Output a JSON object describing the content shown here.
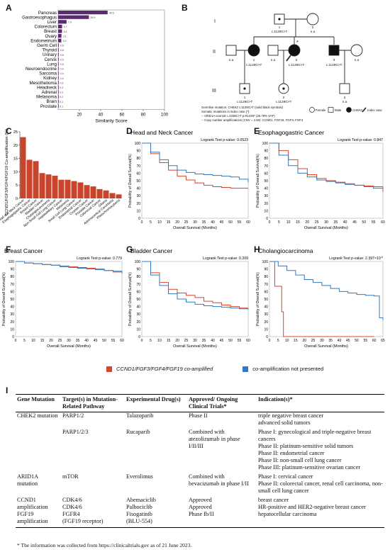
{
  "panel_letters": {
    "a": "A",
    "b": "B",
    "c": "C",
    "d": "D",
    "e": "E",
    "f": "F",
    "g": "G",
    "h": "H",
    "i": "I"
  },
  "colors": {
    "purple": "#5a2b6e",
    "red": "#d9442a",
    "blue": "#2f7bbf",
    "bar_c": "#c8452b"
  },
  "panel_a": {
    "chart_data": {
      "type": "bar",
      "categories": [
        "Pancreas",
        "Gastroesophagus",
        "Liver",
        "Colorectum",
        "Breast",
        "Ovary",
        "Endometrium",
        "Germ Cell",
        "Thyroid",
        "Urinary",
        "Cervix",
        "Lung",
        "Neuroendocrine",
        "Sarcoma",
        "Kidney",
        "Mesothelioma",
        "Headneck",
        "Adrenal",
        "Melanoma",
        "Brain",
        "Prostate"
      ],
      "values": [
        46.5,
        28.9,
        7.9,
        3.7,
        3.6,
        3.1,
        3.0,
        0.6,
        0.6,
        0.6,
        0.5,
        0.5,
        0.4,
        0.4,
        0.4,
        0.3,
        0.2,
        0.2,
        0.2,
        0.1,
        0.1
      ],
      "value_labels": [
        "46.5",
        "28.9",
        "7.9",
        "3.7",
        "3.6",
        "3.1",
        "3.0",
        "0.6",
        "0.6",
        "0.6",
        "0.5",
        "0.5",
        "0.4",
        "0.4",
        "0.4",
        "0.3",
        "0.2",
        "0.2",
        "0.2",
        "0.1",
        "0.1"
      ],
      "xlabel": "Similarity Score",
      "xticks": [
        "20",
        "40",
        "60",
        "80",
        "100"
      ],
      "xlim": [
        0,
        100
      ]
    }
  },
  "panel_b": {
    "gen_labels": [
      "I",
      "II",
      "III"
    ],
    "ind_labels": {
      "I1": "1",
      "I1_v": "c.1129G>T",
      "I2": "2",
      "I2_v": "n.a",
      "II1": "1",
      "II1_v": "c.1129G>T",
      "II2": "2",
      "II2_v": "c.1129G>T",
      "II3": "3",
      "II3_v": "c.1129G>T",
      "na": "n.a",
      "III1": "1",
      "III1_v": "c.1129G>T",
      "III2": "2",
      "III2_v": "c.1129G>T",
      "III3": "3",
      "III3_v": "n.a"
    },
    "notes": [
      "Germline mutation: CHEK2 c.1129G>T (solid black symbols)",
      "Somatic mutations in index case (*):",
      "-- ARID1A exon18 c.4336C>T p.R1446* (25.78% VAF)",
      "-- Copy number amplifications (CNV = 4.50): CCND1, FGF19, FGF3, FGF4"
    ],
    "legend": [
      "Female",
      "Male",
      "CHEK2",
      "Index case"
    ]
  },
  "panel_c": {
    "chart_data": {
      "type": "bar",
      "ylabel": "CCND1/FGF3/FGF4/FGF19 Co-amplification (%)",
      "yticks": [
        "0",
        "5",
        "10",
        "15",
        "20",
        "25"
      ],
      "ylim": [
        0,
        25
      ],
      "categories": [
        "Head and Neck Cancer",
        "Esophagogastric Cancer",
        "Breast Cancer",
        "Bladder Cancer",
        "Cholangiocarcinoma",
        "Non-Small Cell Lung Cancer",
        "Hepatobiliary Cancer",
        "Melanoma",
        "Small Cell Lung Cancer",
        "Endometrial Cancer",
        "Ovarian Cancer",
        "Prostate Cancer",
        "Colorectal Cancer",
        "Glioma",
        "Adrenocortical Carcinoma",
        "Pheochromocytoma"
      ],
      "values": [
        23,
        14.5,
        14,
        9.5,
        9,
        8.5,
        7,
        7,
        6.5,
        6,
        5,
        4.5,
        3.5,
        3,
        2,
        1.5
      ]
    }
  },
  "km": {
    "y_axis_label": "Probability of Overall Survival(%)",
    "x_axis_label": "Overall Survival (Months)",
    "panels": [
      {
        "title": "Head and Neck Cancer",
        "pval": "Logrank Test p-value: 0.0523",
        "xticks": [
          "0",
          "5",
          "10",
          "15",
          "20",
          "25",
          "30",
          "35",
          "40",
          "45",
          "50",
          "55",
          "60"
        ],
        "yticks": [
          "0",
          "10",
          "20",
          "30",
          "40",
          "50",
          "60",
          "70",
          "80",
          "90",
          "100"
        ],
        "series": [
          {
            "name": "co-amplified",
            "x": [
              0,
              5,
              10,
              15,
              20,
              25,
              30,
              35,
              40,
              45,
              50,
              55,
              60
            ],
            "y": [
              100,
              86,
              74,
              64,
              56,
              51,
              47,
              44,
              42,
              41,
              40,
              40,
              40
            ]
          },
          {
            "name": "not presented",
            "x": [
              0,
              5,
              10,
              15,
              20,
              25,
              30,
              35,
              40,
              45,
              50,
              55,
              60
            ],
            "y": [
              100,
              88,
              78,
              70,
              64,
              61,
              59,
              58,
              57,
              56,
              55,
              52,
              48
            ]
          }
        ]
      },
      {
        "title": "Esophagogastric Cancer",
        "pval": "Logrank Test p-value: 0.847",
        "xticks": [
          "0",
          "5",
          "10",
          "15",
          "20",
          "25",
          "30",
          "35",
          "40",
          "45",
          "50",
          "55",
          "60"
        ],
        "yticks": [
          "0",
          "10",
          "20",
          "30",
          "40",
          "50",
          "60",
          "70",
          "80",
          "90",
          "100"
        ],
        "series": [
          {
            "name": "co-amplified",
            "x": [
              0,
              5,
              10,
              15,
              20,
              25,
              30,
              35,
              40,
              45,
              50,
              55,
              60
            ],
            "y": [
              100,
              90,
              78,
              66,
              58,
              53,
              50,
              48,
              46,
              44,
              43,
              42,
              35
            ]
          },
          {
            "name": "not presented",
            "x": [
              0,
              5,
              10,
              15,
              20,
              25,
              30,
              35,
              40,
              45,
              50,
              55,
              60
            ],
            "y": [
              100,
              84,
              70,
              60,
              55,
              51,
              49,
              47,
              45,
              44,
              42,
              40,
              38
            ]
          }
        ]
      },
      {
        "title": "Breast Cancer",
        "pval": "Logrank Test p-value: 0.779",
        "xticks": [
          "0",
          "5",
          "10",
          "15",
          "20",
          "25",
          "30",
          "35",
          "40",
          "45",
          "50",
          "55",
          "60"
        ],
        "yticks": [
          "0",
          "10",
          "20",
          "30",
          "40",
          "50",
          "60",
          "70",
          "80",
          "90",
          "100"
        ],
        "series": [
          {
            "name": "co-amplified",
            "x": [
              0,
              5,
              10,
              15,
              20,
              25,
              30,
              35,
              40,
              45,
              50,
              55,
              60
            ],
            "y": [
              100,
              98,
              97,
              96,
              95,
              94,
              93,
              92,
              91,
              90,
              88,
              86,
              85
            ]
          },
          {
            "name": "not presented",
            "x": [
              0,
              5,
              10,
              15,
              20,
              25,
              30,
              35,
              40,
              45,
              50,
              55,
              60
            ],
            "y": [
              100,
              98,
              97,
              96,
              95,
              93,
              92,
              91,
              90,
              89,
              88,
              87,
              84
            ]
          }
        ]
      },
      {
        "title": "Bladder Cancer",
        "pval": "Logrank Test p-value: 0.209",
        "xticks": [
          "0",
          "5",
          "10",
          "15",
          "20",
          "25",
          "30",
          "35",
          "40",
          "45",
          "50",
          "55",
          "60"
        ],
        "yticks": [
          "0",
          "10",
          "20",
          "30",
          "40",
          "50",
          "60",
          "70",
          "80",
          "90",
          "100"
        ],
        "series": [
          {
            "name": "co-amplified",
            "x": [
              0,
              5,
              10,
              15,
              20,
              25,
              30,
              35,
              40,
              45,
              50,
              55,
              60
            ],
            "y": [
              100,
              85,
              72,
              63,
              58,
              55,
              52,
              47,
              45,
              42,
              40,
              38,
              38
            ]
          },
          {
            "name": "not presented",
            "x": [
              0,
              5,
              10,
              15,
              20,
              25,
              30,
              35,
              40,
              45,
              50,
              55,
              60
            ],
            "y": [
              100,
              82,
              68,
              57,
              50,
              46,
              43,
              41,
              40,
              39,
              38,
              37,
              36
            ]
          }
        ]
      },
      {
        "title": "Cholangiocarcinoma",
        "pval": "Logrank Test p-value: 2.397×10",
        "pval_exp": "-6",
        "xticks": [
          "0",
          "5",
          "10",
          "15",
          "20",
          "25",
          "30",
          "35",
          "40",
          "45",
          "50",
          "55",
          "60",
          "65"
        ],
        "yticks": [
          "0",
          "10",
          "20",
          "30",
          "40",
          "50",
          "60",
          "70",
          "80",
          "90",
          "100"
        ],
        "series": [
          {
            "name": "co-amplified",
            "x": [
              0,
              3,
              5,
              7,
              8,
              9,
              60
            ],
            "y": [
              100,
              67,
              67,
              33,
              0,
              0,
              0
            ]
          },
          {
            "name": "not presented",
            "x": [
              0,
              5,
              10,
              15,
              20,
              25,
              30,
              35,
              40,
              45,
              50,
              55,
              60,
              63,
              65
            ],
            "y": [
              100,
              94,
              88,
              82,
              76,
              72,
              68,
              64,
              60,
              58,
              56,
              55,
              54,
              25,
              22
            ]
          }
        ]
      }
    ]
  },
  "legend_km": {
    "red": "CCND1/FGF3/FGF4/FGF19 co-amplified",
    "blue": "co-amplification not presented"
  },
  "table": {
    "headers": [
      "Gene Mutation",
      "Target(s) in Mutation-Related Pathway",
      "Experimental Drug(s)",
      "Approved/ Ongoing Clinical Trials*",
      "Indication(s)*"
    ],
    "rows": [
      [
        "CHEK2 mutation",
        "PARP1/2",
        "Talazoparib",
        "Phase II",
        "triple negative breast cancer\nadvanced solid tumors"
      ],
      [
        "",
        "PARP1/2/3",
        "Rucaparib",
        "Combined with atezolizumab in phase I/II/III",
        "Phase I: gynecological and triple-negative breast cancers\nPhase II: platinum-sensitive solid tumors\nPhase II: endometrial cancer\nPhase II: non-small cell lung cancer\nPhase III: platinum-sensitive ovarian cancer"
      ],
      [
        "ARID1A mutation",
        "mTOR",
        "Everolimus",
        "Combined with bevacizumab in phase I/II",
        "Phase I: cervical cancer\nPhase II: colorectal cancer, renal cell carcinoma, non-small cell lung cancer"
      ],
      [
        "CCND1 amplification\nFGF19 amplification",
        "CDK4/6\nCDK4/6\nFGFR4\n(FGF19 receptor)",
        "Abemaciclib\nPalbociclib\nFisogatinib\n(BLU-554)",
        "Approved\nApproved\nPhase Ib/II",
        "breast cancer\nHR-positive and HER2-negative breast cancer\nhepatocellular carcinoma"
      ]
    ],
    "footnote": "* The information was collected from https://clinicaltrials.gov as of 21 June 2023."
  }
}
